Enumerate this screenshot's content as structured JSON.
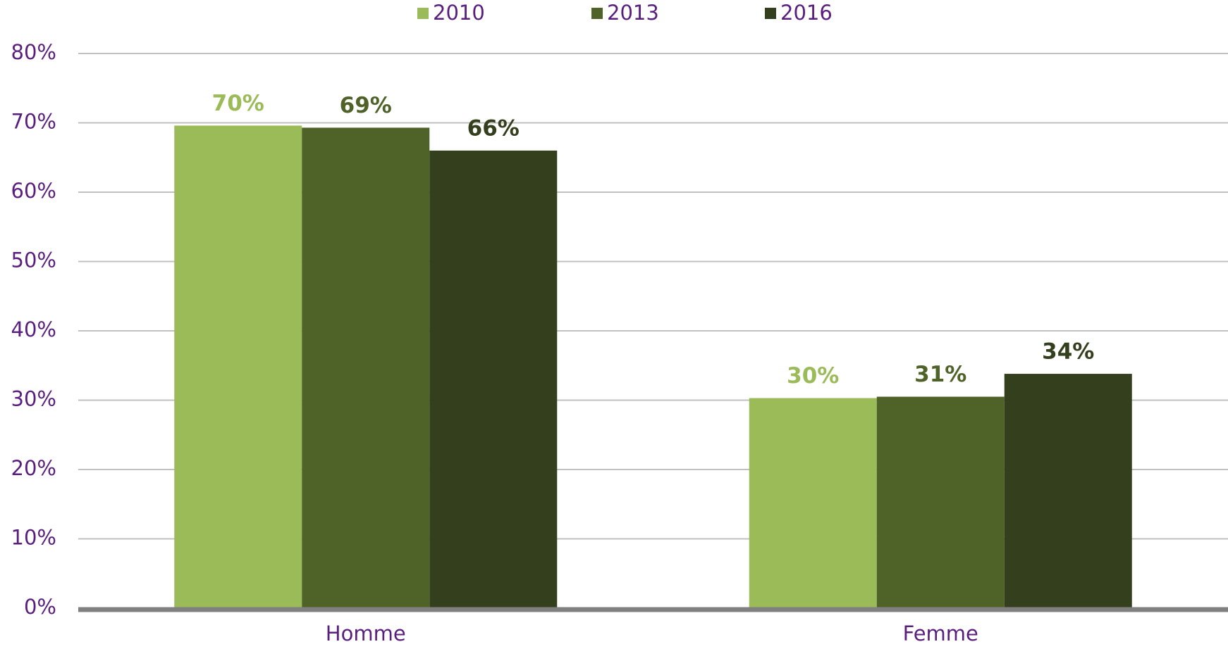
{
  "chart_data": {
    "type": "bar",
    "categories": [
      "Homme",
      "Femme"
    ],
    "series": [
      {
        "name": "2010",
        "color": "#9bbb59",
        "values": [
          69.6,
          30.3
        ],
        "value_labels": [
          "70%",
          "30%"
        ]
      },
      {
        "name": "2013",
        "color": "#4f6228",
        "values": [
          69.3,
          30.5
        ],
        "value_labels": [
          "69%",
          "31%"
        ]
      },
      {
        "name": "2016",
        "color": "#333f1d",
        "values": [
          66.0,
          33.8
        ],
        "value_labels": [
          "66%",
          "34%"
        ]
      }
    ],
    "ylim": [
      0,
      80
    ],
    "yticks": [
      {
        "value": 0,
        "label": "0%"
      },
      {
        "value": 10,
        "label": "10%"
      },
      {
        "value": 20,
        "label": "20%"
      },
      {
        "value": 30,
        "label": "30%"
      },
      {
        "value": 40,
        "label": "40%"
      },
      {
        "value": 50,
        "label": "50%"
      },
      {
        "value": 60,
        "label": "60%"
      },
      {
        "value": 70,
        "label": "70%"
      },
      {
        "value": 80,
        "label": "80%"
      }
    ],
    "grid": true,
    "legend": "top"
  }
}
